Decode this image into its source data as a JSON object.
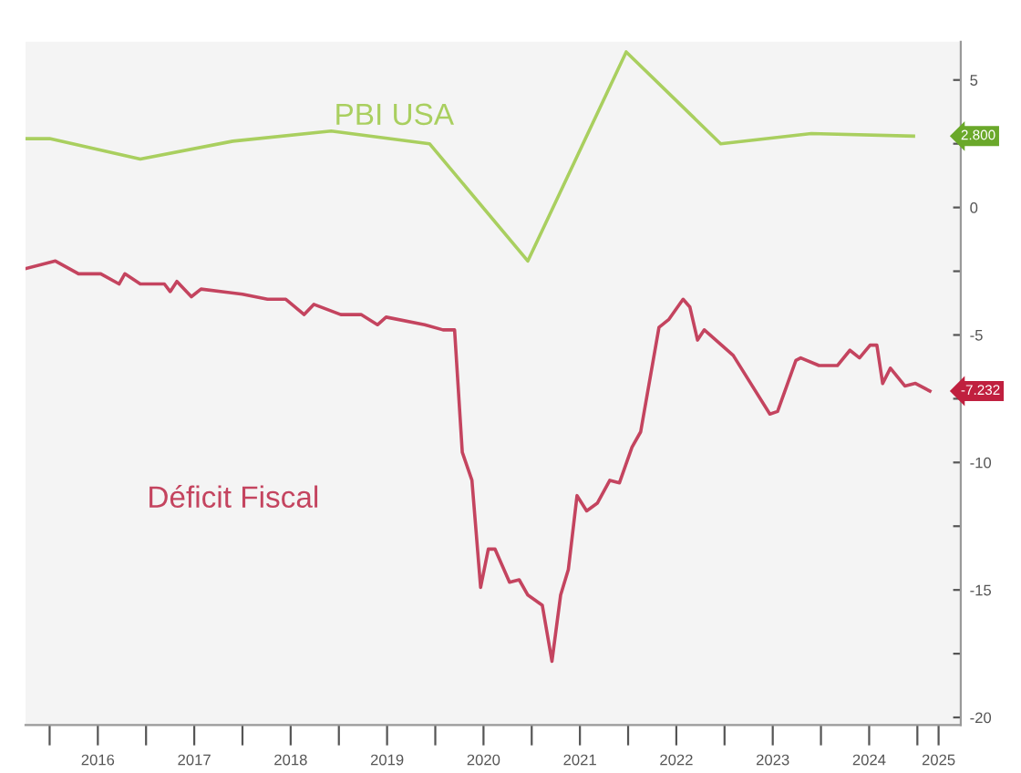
{
  "chart_data": {
    "type": "line",
    "series": [
      {
        "name": "PBI USA",
        "color": "#a9cf5f",
        "x": [
          2015.75,
          2016.0,
          2016.94,
          2017.9,
          2018.92,
          2019.94,
          2020.96,
          2021.98,
          2022.96,
          2023.9,
          2024.96
        ],
        "values": [
          2.7,
          2.7,
          1.9,
          2.6,
          3.0,
          2.5,
          -2.1,
          6.1,
          2.5,
          2.9,
          2.8
        ]
      },
      {
        "name": "Déficit Fiscal",
        "color": "#c4445f",
        "x": [
          2015.75,
          2016.06,
          2016.3,
          2016.53,
          2016.72,
          2016.78,
          2016.94,
          2017.19,
          2017.25,
          2017.32,
          2017.47,
          2017.57,
          2018.0,
          2018.26,
          2018.45,
          2018.64,
          2018.74,
          2019.02,
          2019.23,
          2019.4,
          2019.49,
          2019.89,
          2020.08,
          2020.2,
          2020.28,
          2020.38,
          2020.47,
          2020.55,
          2020.62,
          2020.77,
          2020.87,
          2020.96,
          2021.11,
          2021.21,
          2021.3,
          2021.38,
          2021.47,
          2021.57,
          2021.68,
          2021.81,
          2021.91,
          2022.04,
          2022.13,
          2022.32,
          2022.42,
          2022.57,
          2022.64,
          2022.72,
          2022.79,
          2022.94,
          2023.09,
          2023.47,
          2023.55,
          2023.74,
          2023.79,
          2023.98,
          2024.17,
          2024.3,
          2024.4,
          2024.51,
          2024.58,
          2024.64,
          2024.72,
          2024.87,
          2024.98,
          2025.13
        ],
        "values": [
          -2.4,
          -2.1,
          -2.6,
          -2.6,
          -3.0,
          -2.6,
          -3.0,
          -3.0,
          -3.3,
          -2.9,
          -3.5,
          -3.2,
          -3.4,
          -3.6,
          -3.6,
          -4.2,
          -3.8,
          -4.2,
          -4.2,
          -4.6,
          -4.3,
          -4.6,
          -4.8,
          -4.8,
          -9.6,
          -10.7,
          -14.9,
          -13.4,
          -13.4,
          -14.7,
          -14.6,
          -15.2,
          -15.6,
          -17.8,
          -15.2,
          -14.2,
          -11.3,
          -11.9,
          -11.6,
          -10.7,
          -10.8,
          -9.4,
          -8.8,
          -4.7,
          -4.4,
          -3.6,
          -3.9,
          -5.2,
          -4.8,
          -5.3,
          -5.8,
          -8.1,
          -8.0,
          -6.0,
          -5.9,
          -6.2,
          -6.2,
          -5.6,
          -5.9,
          -5.4,
          -5.4,
          -6.9,
          -6.3,
          -7.0,
          -6.9,
          -7.2
        ]
      }
    ],
    "annotations": [
      "2.800",
      "-7.232"
    ],
    "xlim": [
      2015.75,
      2025.45
    ],
    "xticks": [
      {
        "value": 2016,
        "label": null
      },
      {
        "value": 2016.5,
        "label": "2016"
      },
      {
        "value": 2017,
        "label": null
      },
      {
        "value": 2017.5,
        "label": "2017"
      },
      {
        "value": 2018,
        "label": null
      },
      {
        "value": 2018.5,
        "label": "2018"
      },
      {
        "value": 2019,
        "label": null
      },
      {
        "value": 2019.5,
        "label": "2019"
      },
      {
        "value": 2020,
        "label": null
      },
      {
        "value": 2020.5,
        "label": "2020"
      },
      {
        "value": 2021,
        "label": null
      },
      {
        "value": 2021.5,
        "label": "2021"
      },
      {
        "value": 2022,
        "label": null
      },
      {
        "value": 2022.5,
        "label": "2022"
      },
      {
        "value": 2023,
        "label": null
      },
      {
        "value": 2023.5,
        "label": "2023"
      },
      {
        "value": 2024,
        "label": null
      },
      {
        "value": 2024.5,
        "label": "2024"
      },
      {
        "value": 2025,
        "label": null
      },
      {
        "value": 2025.22,
        "label": "2025"
      }
    ],
    "ylim": [
      -20.3,
      6.5
    ],
    "yticks": [
      -20,
      {
        "value": -17.5,
        "label": null
      },
      -15,
      {
        "value": -12.5,
        "label": null
      },
      -10,
      {
        "value": -7.5,
        "label": null
      },
      -5,
      {
        "value": -2.5,
        "label": null
      },
      0,
      {
        "value": 2.5,
        "label": null
      },
      5
    ],
    "grid": false,
    "legend": false,
    "marker": "none",
    "line_style": "solid"
  }
}
